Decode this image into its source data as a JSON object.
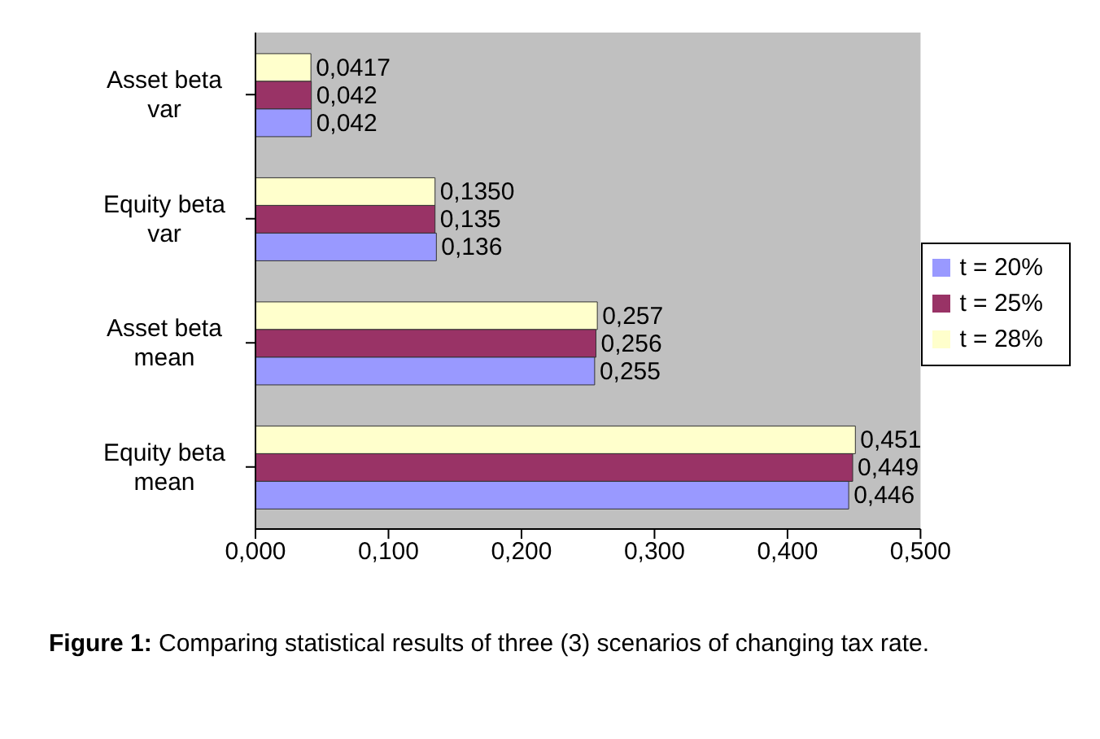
{
  "chart_data": {
    "type": "bar",
    "orientation": "horizontal",
    "categories": [
      "Asset beta var",
      "Equity beta var",
      "Asset beta mean",
      "Equity beta mean"
    ],
    "series": [
      {
        "name": "t = 28%",
        "color": "#ffffcc",
        "values": [
          0.0417,
          0.135,
          0.257,
          0.451
        ],
        "value_labels": [
          "0,0417",
          "0,1350",
          "0,257",
          "0,451"
        ]
      },
      {
        "name": "t = 25%",
        "color": "#993366",
        "values": [
          0.042,
          0.135,
          0.256,
          0.449
        ],
        "value_labels": [
          "0,042",
          "0,135",
          "0,256",
          "0,449"
        ]
      },
      {
        "name": "t = 20%",
        "color": "#9999ff",
        "values": [
          0.042,
          0.136,
          0.255,
          0.446
        ],
        "value_labels": [
          "0,042",
          "0,136",
          "0,255",
          "0,446"
        ]
      }
    ],
    "xlim": [
      0,
      0.5
    ],
    "xticks": [
      {
        "value": 0,
        "label": "0,000"
      },
      {
        "value": 0.1,
        "label": "0,100"
      },
      {
        "value": 0.2,
        "label": "0,200"
      },
      {
        "value": 0.3,
        "label": "0,300"
      },
      {
        "value": 0.4,
        "label": "0,400"
      },
      {
        "value": 0.5,
        "label": "0,500"
      }
    ],
    "legend": "right",
    "annotations": [
      "Figure 1: Comparing statistical results of three (3) scenarios of changing tax rate."
    ]
  }
}
